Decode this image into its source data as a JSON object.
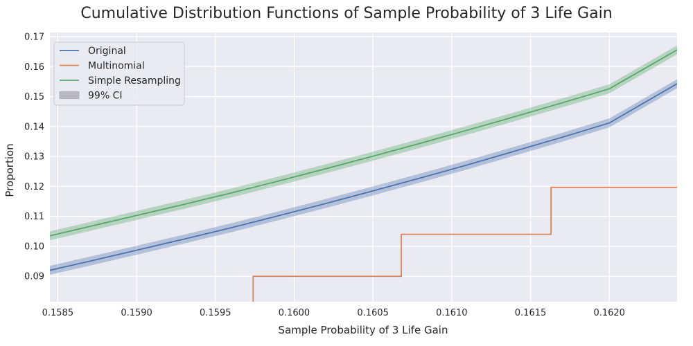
{
  "chart_data": {
    "type": "line",
    "title": "Cumulative Distribution Functions of Sample Probability of 3 Life Gain",
    "xlabel": "Sample Probability of 3 Life Gain",
    "ylabel": "Proportion",
    "xlim": [
      0.15845,
      0.16243
    ],
    "ylim": [
      0.0815,
      0.1714
    ],
    "xticks": [
      0.1585,
      0.159,
      0.1595,
      0.16,
      0.1605,
      0.161,
      0.1615,
      0.162
    ],
    "xtick_labels": [
      "0.1585",
      "0.1590",
      "0.1595",
      "0.1600",
      "0.1605",
      "0.1610",
      "0.1615",
      "0.1620"
    ],
    "yticks": [
      0.09,
      0.1,
      0.11,
      0.12,
      0.13,
      0.14,
      0.15,
      0.16,
      0.17
    ],
    "ytick_labels": [
      "0.09",
      "0.10",
      "0.11",
      "0.12",
      "0.13",
      "0.14",
      "0.15",
      "0.16",
      "0.17"
    ],
    "grid": true,
    "legend_position": "top-left",
    "legend": [
      "Original",
      "Multinomial",
      "Simple Resampling",
      "99% CI"
    ],
    "series": [
      {
        "name": "Original",
        "color": "#4c72b0",
        "style": "line",
        "ci_halfwidth": 0.0015,
        "x": [
          0.15845,
          0.1587,
          0.159,
          0.1593,
          0.1596,
          0.1599,
          0.1602,
          0.1605,
          0.1608,
          0.1611,
          0.1614,
          0.1617,
          0.162,
          0.16243
        ],
        "y": [
          0.092,
          0.095,
          0.0987,
          0.1024,
          0.1062,
          0.1102,
          0.1143,
          0.1185,
          0.1228,
          0.1272,
          0.1318,
          0.1364,
          0.1412,
          0.1543
        ]
      },
      {
        "name": "Multinomial",
        "color": "#dd8452",
        "style": "step",
        "x": [
          0.15974,
          0.15974,
          0.16068,
          0.16068,
          0.16163,
          0.16163,
          0.16243
        ],
        "y": [
          0.0815,
          0.09,
          0.09,
          0.104,
          0.104,
          0.1197,
          0.1197
        ]
      },
      {
        "name": "Simple Resampling",
        "color": "#55a868",
        "style": "line",
        "ci_halfwidth": 0.0015,
        "x": [
          0.15845,
          0.1587,
          0.159,
          0.1593,
          0.1596,
          0.1599,
          0.1602,
          0.1605,
          0.1608,
          0.1611,
          0.1614,
          0.1617,
          0.162,
          0.16243
        ],
        "y": [
          0.1035,
          0.1066,
          0.1103,
          0.114,
          0.1178,
          0.1218,
          0.1259,
          0.1301,
          0.1344,
          0.1388,
          0.1433,
          0.1479,
          0.1526,
          0.1656
        ]
      }
    ],
    "ci_legend_color": "#b8b8be"
  }
}
